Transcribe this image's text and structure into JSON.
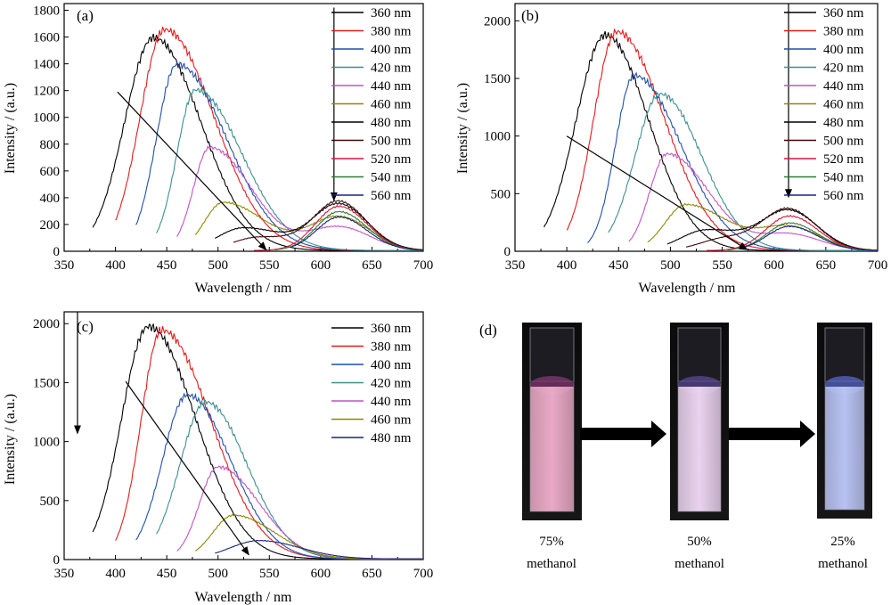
{
  "figure": {
    "panels": [
      "(a)",
      "(b)",
      "(c)",
      "(d)"
    ],
    "photo_labels": [
      {
        "pct": "75%",
        "solvent": "methanol"
      },
      {
        "pct": "50%",
        "solvent": "methanol"
      },
      {
        "pct": "25%",
        "solvent": "methanol"
      }
    ],
    "photo_colors": {
      "liquid": [
        "#e9a9c6",
        "#e9d2ee",
        "#b8c2f2"
      ],
      "cap_glow": [
        "#8a3a78",
        "#5f4b9a",
        "#5b6bd0"
      ]
    }
  },
  "chart_data": [
    {
      "type": "line",
      "panel": "(a)",
      "xlabel": "Wavelength / nm",
      "ylabel": "Intensity / (a.u.)",
      "xlim": [
        350,
        700
      ],
      "ylim": [
        0,
        1850
      ],
      "xticks": [
        350,
        400,
        450,
        500,
        550,
        600,
        650,
        700
      ],
      "yticks": [
        0,
        200,
        400,
        600,
        800,
        1000,
        1200,
        1400,
        1600,
        1800
      ],
      "legend_placement": "top-right",
      "arrows": [
        {
          "from": [
            402,
            1190
          ],
          "to": [
            547,
            10
          ]
        },
        {
          "from": [
            613,
            1820
          ],
          "to": [
            613,
            380
          ]
        }
      ],
      "series": [
        {
          "name": "360 nm",
          "color": "#000000",
          "excitation": 360,
          "peaks": [
            {
              "x": 437,
              "y": 1590,
              "wL": 28,
              "wR": 46
            }
          ],
          "x": [
            378,
            700
          ]
        },
        {
          "name": "380 nm",
          "color": "#e41a1c",
          "excitation": 380,
          "peaks": [
            {
              "x": 448,
              "y": 1650,
              "wL": 24,
              "wR": 48
            }
          ],
          "x": [
            400,
            700
          ]
        },
        {
          "name": "400 nm",
          "color": "#1f4fa8",
          "excitation": 400,
          "peaks": [
            {
              "x": 460,
              "y": 1390,
              "wL": 20,
              "wR": 48
            }
          ],
          "x": [
            420,
            700
          ]
        },
        {
          "name": "420 nm",
          "color": "#3d8f8f",
          "excitation": 420,
          "peaks": [
            {
              "x": 478,
              "y": 1200,
              "wL": 18,
              "wR": 45
            }
          ],
          "x": [
            440,
            700
          ]
        },
        {
          "name": "440 nm",
          "color": "#c154c1",
          "excitation": 440,
          "peaks": [
            {
              "x": 492,
              "y": 770,
              "wL": 16,
              "wR": 40
            },
            {
              "x": 618,
              "y": 175,
              "wL": 30,
              "wR": 30
            }
          ],
          "x": [
            460,
            700
          ]
        },
        {
          "name": "460 nm",
          "color": "#8a8a00",
          "excitation": 460,
          "peaks": [
            {
              "x": 505,
              "y": 360,
              "wL": 18,
              "wR": 40
            },
            {
              "x": 618,
              "y": 250,
              "wL": 28,
              "wR": 30
            }
          ],
          "x": [
            478,
            700
          ]
        },
        {
          "name": "480 nm",
          "color": "#000000",
          "excitation": 480,
          "peaks": [
            {
              "x": 525,
              "y": 170,
              "wL": 25,
              "wR": 40
            },
            {
              "x": 618,
              "y": 340,
              "wL": 25,
              "wR": 28
            }
          ],
          "x": [
            497,
            700
          ]
        },
        {
          "name": "500 nm",
          "color": "#3b0a0a",
          "excitation": 500,
          "peaks": [
            {
              "x": 540,
              "y": 100,
              "wL": 25,
              "wR": 40
            },
            {
              "x": 618,
              "y": 355,
              "wL": 24,
              "wR": 27
            }
          ],
          "x": [
            515,
            700
          ]
        },
        {
          "name": "520 nm",
          "color": "#d8153b",
          "excitation": 520,
          "peaks": [
            {
              "x": 618,
              "y": 330,
              "wL": 23,
              "wR": 27
            }
          ],
          "x": [
            535,
            700
          ]
        },
        {
          "name": "540 nm",
          "color": "#2e7d32",
          "excitation": 540,
          "peaks": [
            {
              "x": 618,
              "y": 290,
              "wL": 22,
              "wR": 27
            }
          ],
          "x": [
            555,
            700
          ]
        },
        {
          "name": "560 nm",
          "color": "#1a237e",
          "excitation": 560,
          "peaks": [
            {
              "x": 618,
              "y": 250,
              "wL": 22,
              "wR": 27
            }
          ],
          "x": [
            572,
            700
          ]
        }
      ]
    },
    {
      "type": "line",
      "panel": "(b)",
      "xlabel": "Wavelength / nm",
      "ylabel": "Intensity / (a.u.)",
      "xlim": [
        350,
        700
      ],
      "ylim": [
        0,
        2150
      ],
      "xticks": [
        350,
        400,
        450,
        500,
        550,
        600,
        650,
        700
      ],
      "yticks": [
        0,
        500,
        1000,
        1500,
        2000
      ],
      "legend_placement": "top-right",
      "arrows": [
        {
          "from": [
            400,
            1000
          ],
          "to": [
            574,
            15
          ]
        },
        {
          "from": [
            614,
            2150
          ],
          "to": [
            614,
            470
          ]
        }
      ],
      "series": [
        {
          "name": "360 nm",
          "color": "#000000",
          "excitation": 360,
          "peaks": [
            {
              "x": 437,
              "y": 1870,
              "wL": 28,
              "wR": 42
            }
          ],
          "x": [
            378,
            700
          ]
        },
        {
          "name": "380 nm",
          "color": "#e41a1c",
          "excitation": 380,
          "peaks": [
            {
              "x": 448,
              "y": 1900,
              "wL": 22,
              "wR": 46
            }
          ],
          "x": [
            400,
            700
          ]
        },
        {
          "name": "400 nm",
          "color": "#1f4fa8",
          "excitation": 400,
          "peaks": [
            {
              "x": 465,
              "y": 1520,
              "wL": 18,
              "wR": 45
            }
          ],
          "x": [
            420,
            700
          ]
        },
        {
          "name": "420 nm",
          "color": "#3d8f8f",
          "excitation": 420,
          "peaks": [
            {
              "x": 490,
              "y": 1360,
              "wL": 24,
              "wR": 40
            }
          ],
          "x": [
            440,
            700
          ]
        },
        {
          "name": "440 nm",
          "color": "#c154c1",
          "excitation": 440,
          "peaks": [
            {
              "x": 497,
              "y": 840,
              "wL": 17,
              "wR": 40
            },
            {
              "x": 615,
              "y": 140,
              "wL": 28,
              "wR": 30
            }
          ],
          "x": [
            460,
            700
          ]
        },
        {
          "name": "460 nm",
          "color": "#8a8a00",
          "excitation": 460,
          "peaks": [
            {
              "x": 515,
              "y": 400,
              "wL": 20,
              "wR": 40
            },
            {
              "x": 615,
              "y": 200,
              "wL": 28,
              "wR": 30
            }
          ],
          "x": [
            478,
            700
          ]
        },
        {
          "name": "480 nm",
          "color": "#000000",
          "excitation": 480,
          "peaks": [
            {
              "x": 535,
              "y": 180,
              "wL": 25,
              "wR": 40
            },
            {
              "x": 615,
              "y": 330,
              "wL": 25,
              "wR": 28
            }
          ],
          "x": [
            497,
            700
          ]
        },
        {
          "name": "500 nm",
          "color": "#3b0a0a",
          "excitation": 500,
          "peaks": [
            {
              "x": 555,
              "y": 110,
              "wL": 25,
              "wR": 40
            },
            {
              "x": 615,
              "y": 330,
              "wL": 24,
              "wR": 27
            }
          ],
          "x": [
            515,
            700
          ]
        },
        {
          "name": "520 nm",
          "color": "#d8153b",
          "excitation": 520,
          "peaks": [
            {
              "x": 615,
              "y": 300,
              "wL": 23,
              "wR": 27
            }
          ],
          "x": [
            535,
            700
          ]
        },
        {
          "name": "540 nm",
          "color": "#2e7d32",
          "excitation": 540,
          "peaks": [
            {
              "x": 615,
              "y": 240,
              "wL": 22,
              "wR": 27
            }
          ],
          "x": [
            555,
            700
          ]
        },
        {
          "name": "560 nm",
          "color": "#1a237e",
          "excitation": 560,
          "peaks": [
            {
              "x": 615,
              "y": 210,
              "wL": 22,
              "wR": 27
            }
          ],
          "x": [
            572,
            700
          ]
        }
      ]
    },
    {
      "type": "line",
      "panel": "(c)",
      "xlabel": "Wavelength / nm",
      "ylabel": "Intensity / (a.u.)",
      "xlim": [
        350,
        700
      ],
      "ylim": [
        0,
        2100
      ],
      "xticks": [
        350,
        400,
        450,
        500,
        550,
        600,
        650,
        700
      ],
      "yticks": [
        0,
        500,
        1000,
        1500,
        2000
      ],
      "legend_placement": "top-right",
      "arrows": [
        {
          "from": [
            410,
            1510
          ],
          "to": [
            530,
            40
          ]
        },
        {
          "from": [
            363,
            2100
          ],
          "to": [
            363,
            1070
          ]
        }
      ],
      "series": [
        {
          "name": "360 nm",
          "color": "#000000",
          "excitation": 360,
          "peaks": [
            {
              "x": 432,
              "y": 1970,
              "wL": 26,
              "wR": 46
            }
          ],
          "x": [
            378,
            700
          ]
        },
        {
          "name": "380 nm",
          "color": "#e41a1c",
          "excitation": 380,
          "peaks": [
            {
              "x": 445,
              "y": 1940,
              "wL": 20,
              "wR": 48
            }
          ],
          "x": [
            400,
            700
          ]
        },
        {
          "name": "400 nm",
          "color": "#1f4fa8",
          "excitation": 400,
          "peaks": [
            {
              "x": 470,
              "y": 1390,
              "wL": 24,
              "wR": 42
            }
          ],
          "x": [
            420,
            700
          ]
        },
        {
          "name": "420 nm",
          "color": "#3d8f8f",
          "excitation": 420,
          "peaks": [
            {
              "x": 488,
              "y": 1330,
              "wL": 25,
              "wR": 40
            }
          ],
          "x": [
            440,
            700
          ]
        },
        {
          "name": "440 nm",
          "color": "#c154c1",
          "excitation": 440,
          "peaks": [
            {
              "x": 500,
              "y": 780,
              "wL": 18,
              "wR": 40
            }
          ],
          "x": [
            460,
            700
          ]
        },
        {
          "name": "460 nm",
          "color": "#8a8a00",
          "excitation": 460,
          "peaks": [
            {
              "x": 515,
              "y": 370,
              "wL": 20,
              "wR": 40
            }
          ],
          "x": [
            478,
            700
          ]
        },
        {
          "name": "480 nm",
          "color": "#1a237e",
          "excitation": 480,
          "peaks": [
            {
              "x": 540,
              "y": 155,
              "wL": 28,
              "wR": 40
            }
          ],
          "x": [
            497,
            700
          ]
        }
      ]
    }
  ]
}
